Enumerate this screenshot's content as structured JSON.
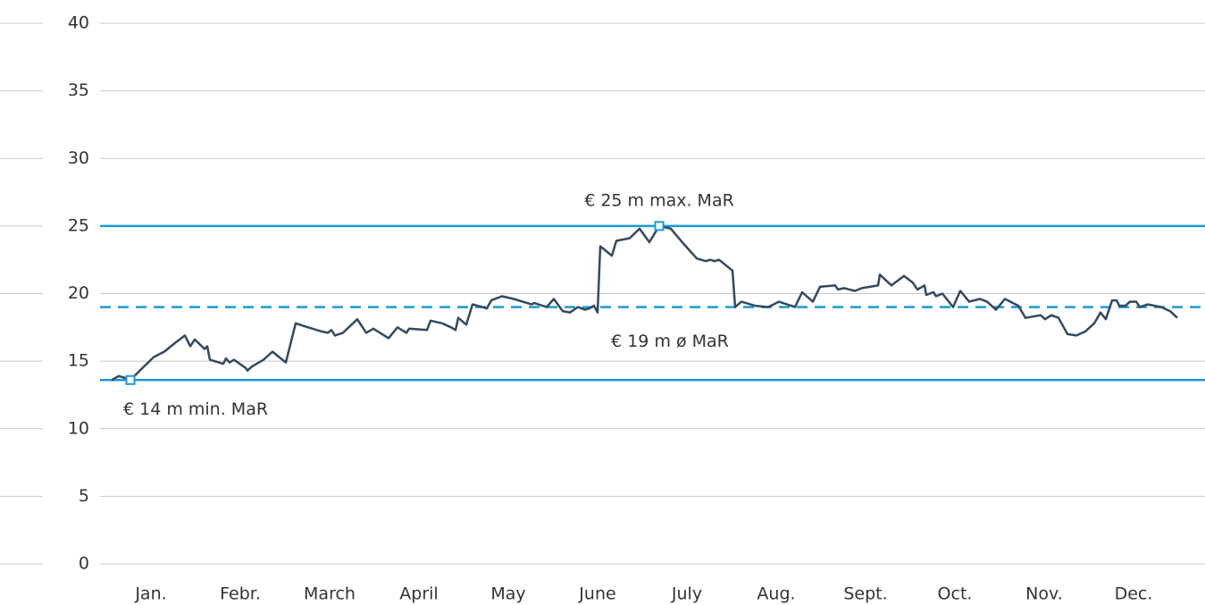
{
  "chart_data": {
    "type": "line",
    "categories": [
      "Jan.",
      "Febr.",
      "March",
      "April",
      "May",
      "June",
      "July",
      "Aug.",
      "Sept.",
      "Oct.",
      "Nov.",
      "Dec."
    ],
    "xlim": [
      0,
      12
    ],
    "ylim": [
      0,
      40
    ],
    "yticks": [
      0,
      5,
      10,
      15,
      20,
      25,
      30,
      35,
      40
    ],
    "grid": true,
    "series": [
      {
        "color": "#34495e",
        "x": [
          0.06,
          0.14,
          0.21,
          0.27,
          0.39,
          0.53,
          0.65,
          0.76,
          0.88,
          0.94,
          0.99,
          1.1,
          1.13,
          1.16,
          1.31,
          1.34,
          1.38,
          1.43,
          1.56,
          1.58,
          1.63,
          1.76,
          1.86,
          2.01,
          2.12,
          2.26,
          2.41,
          2.48,
          2.52,
          2.56,
          2.65,
          2.81,
          2.91,
          2.99,
          3.16,
          3.26,
          3.36,
          3.39,
          3.59,
          3.63,
          3.76,
          3.86,
          3.91,
          3.94,
          4.03,
          4.1,
          4.26,
          4.31,
          4.43,
          4.56,
          4.76,
          4.79,
          4.93,
          5.01,
          5.11,
          5.19,
          5.28,
          5.36,
          5.41,
          5.46,
          5.5,
          5.53,
          5.66,
          5.71,
          5.86,
          5.97,
          6.08,
          6.19,
          6.32,
          6.46,
          6.61,
          6.71,
          6.76,
          6.81,
          6.86,
          7.01,
          7.04,
          7.11,
          7.26,
          7.41,
          7.53,
          7.71,
          7.79,
          7.91,
          7.99,
          8.16,
          8.19,
          8.26,
          8.38,
          8.46,
          8.64,
          8.66,
          8.79,
          8.93,
          9.03,
          9.08,
          9.16,
          9.18,
          9.26,
          9.29,
          9.36,
          9.48,
          9.56,
          9.66,
          9.78,
          9.86,
          9.96,
          10.06,
          10.21,
          10.29,
          10.46,
          10.51,
          10.58,
          10.66,
          10.76,
          10.86,
          10.96,
          11.06,
          11.13,
          11.19,
          11.26,
          11.31,
          11.34,
          11.41,
          11.46,
          11.53,
          11.57,
          11.66,
          11.81,
          11.91,
          11.99
        ],
        "values": [
          13.6,
          13.9,
          13.75,
          13.6,
          14.4,
          15.3,
          15.7,
          16.3,
          16.9,
          16.1,
          16.6,
          15.9,
          16.1,
          15.1,
          14.8,
          15.2,
          14.9,
          15.1,
          14.5,
          14.3,
          14.6,
          15.1,
          15.7,
          14.9,
          17.8,
          17.5,
          17.2,
          17.1,
          17.3,
          16.9,
          17.1,
          18.1,
          17.1,
          17.4,
          16.7,
          17.5,
          17.1,
          17.4,
          17.3,
          18.0,
          17.8,
          17.5,
          17.3,
          18.2,
          17.7,
          19.2,
          18.9,
          19.5,
          19.8,
          19.6,
          19.2,
          19.3,
          19.0,
          19.6,
          18.7,
          18.6,
          19.0,
          18.8,
          18.9,
          19.1,
          18.6,
          23.5,
          22.8,
          23.9,
          24.1,
          24.8,
          23.8,
          25.0,
          24.8,
          23.7,
          22.6,
          22.4,
          22.5,
          22.4,
          22.5,
          21.7,
          19.0,
          19.4,
          19.1,
          19.0,
          19.4,
          19.0,
          20.1,
          19.4,
          20.5,
          20.6,
          20.3,
          20.4,
          20.2,
          20.4,
          20.6,
          21.4,
          20.6,
          21.3,
          20.8,
          20.3,
          20.6,
          19.9,
          20.1,
          19.8,
          20.0,
          19.0,
          20.2,
          19.4,
          19.6,
          19.4,
          18.8,
          19.6,
          19.1,
          18.2,
          18.4,
          18.1,
          18.4,
          18.2,
          17.0,
          16.9,
          17.2,
          17.8,
          18.6,
          18.1,
          19.5,
          19.5,
          19.1,
          19.1,
          19.4,
          19.4,
          19.0,
          19.2,
          19.0,
          18.7,
          18.2
        ]
      }
    ],
    "reference_lines": [
      {
        "label": "€ 25 m max. MaR",
        "value": 25,
        "style": "solid",
        "color": "#1a9bd7",
        "marker_x": 6.19
      },
      {
        "label": "€ 19 m ø MaR",
        "value": 19,
        "style": "dashed",
        "color": "#1a9bd7"
      },
      {
        "label": "€ 14 m min. MaR",
        "value": 13.6,
        "style": "solid",
        "color": "#1a9bd7",
        "marker_x": 0.27
      }
    ]
  }
}
